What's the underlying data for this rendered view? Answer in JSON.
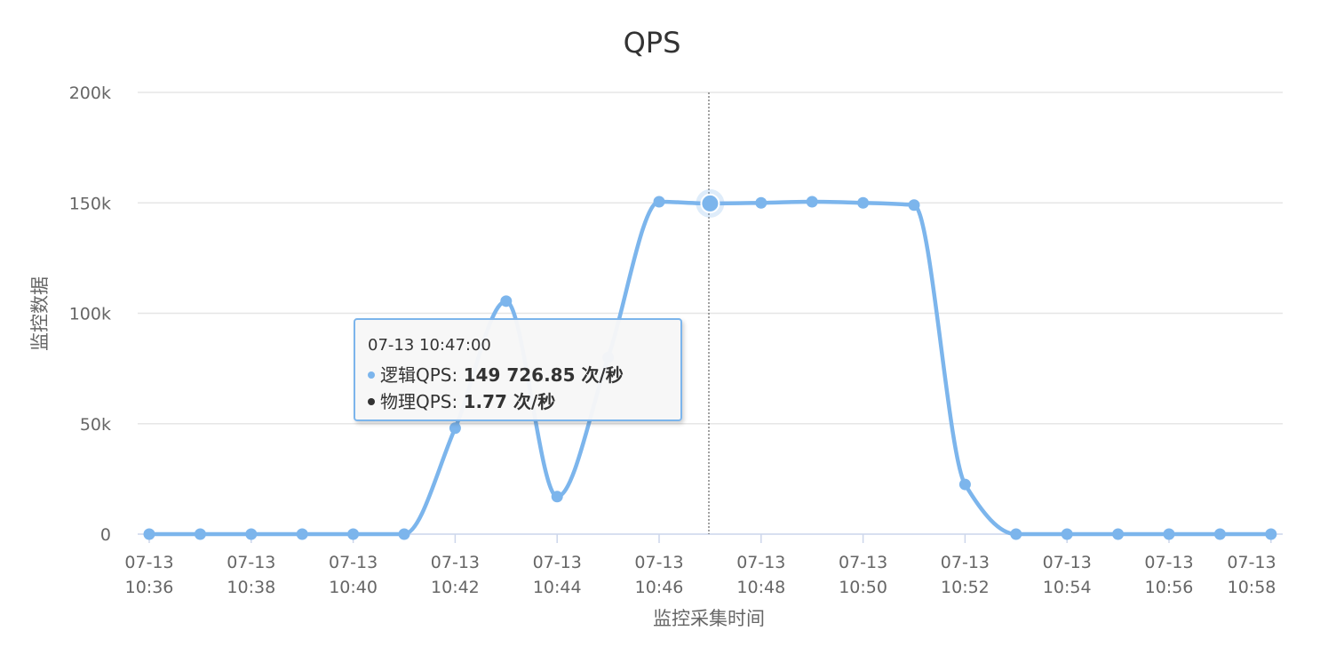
{
  "chart_data": {
    "type": "line",
    "title": "QPS",
    "xlabel": "监控采集时间",
    "ylabel": "监控数据",
    "ylim": [
      0,
      200000
    ],
    "ytick_values": [
      0,
      50000,
      100000,
      150000,
      200000
    ],
    "ytick_labels": [
      "0",
      "50k",
      "100k",
      "150k",
      "200k"
    ],
    "xtick_labels": [
      [
        "07-13",
        "10:36"
      ],
      [
        "07-13",
        "10:38"
      ],
      [
        "07-13",
        "10:40"
      ],
      [
        "07-13",
        "10:42"
      ],
      [
        "07-13",
        "10:44"
      ],
      [
        "07-13",
        "10:46"
      ],
      [
        "07-13",
        "10:48"
      ],
      [
        "07-13",
        "10:50"
      ],
      [
        "07-13",
        "10:52"
      ],
      [
        "07-13",
        "10:54"
      ],
      [
        "07-13",
        "10:56"
      ],
      [
        "07-13",
        "10:58"
      ]
    ],
    "x": [
      "10:36",
      "10:37",
      "10:38",
      "10:39",
      "10:40",
      "10:41",
      "10:42",
      "10:43",
      "10:44",
      "10:45",
      "10:46",
      "10:47",
      "10:48",
      "10:49",
      "10:50",
      "10:51",
      "10:52",
      "10:53",
      "10:54",
      "10:55",
      "10:56",
      "10:57",
      "10:58"
    ],
    "grid": true,
    "series": [
      {
        "name": "逻辑QPS",
        "color": "#7cb5ec",
        "values": [
          0,
          0,
          0,
          0,
          0,
          0,
          48000,
          105500,
          17000,
          80000,
          150500,
          149726.85,
          150000,
          150500,
          150000,
          149000,
          22500,
          0,
          0,
          0,
          0,
          0,
          0
        ]
      },
      {
        "name": "物理QPS",
        "color": "#434348",
        "values": [
          0,
          0,
          0,
          0,
          0,
          0,
          0,
          0,
          0,
          0,
          0,
          1.77,
          0,
          0,
          0,
          0,
          0,
          0,
          0,
          0,
          0,
          0,
          0
        ]
      }
    ],
    "highlight_index": 11
  },
  "tooltip": {
    "header": "07-13 10:47:00",
    "rows": [
      {
        "name": "逻辑QPS",
        "sep": ": ",
        "value": "149 726.85 次/秒",
        "color": "#7cb5ec"
      },
      {
        "name": "物理QPS",
        "sep": ": ",
        "value": "1.77 次/秒",
        "color": "#333333"
      }
    ]
  }
}
